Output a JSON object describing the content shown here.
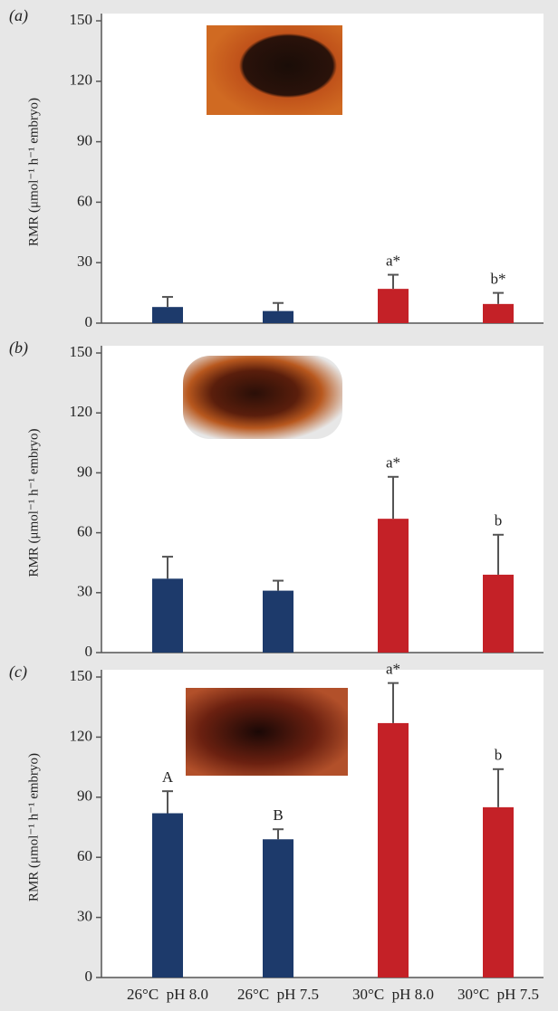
{
  "chart_data": [
    {
      "type": "bar",
      "panel_label": "(a)",
      "ylabel": "RMR (μmol⁻¹ h⁻¹ embryo)",
      "ylim": [
        0,
        150
      ],
      "yticks": [
        0,
        30,
        60,
        90,
        120,
        150
      ],
      "colors": [
        "#1d3a6b",
        "#1d3a6b",
        "#c42127",
        "#c42127"
      ],
      "values": [
        8,
        6,
        17,
        9.5
      ],
      "errors": [
        5,
        4,
        7,
        5.5
      ],
      "annotations": [
        null,
        null,
        "a*",
        "b*"
      ]
    },
    {
      "type": "bar",
      "panel_label": "(b)",
      "ylabel": "RMR (μmol⁻¹ h⁻¹ embryo)",
      "ylim": [
        0,
        150
      ],
      "yticks": [
        0,
        30,
        60,
        90,
        120,
        150
      ],
      "colors": [
        "#1d3a6b",
        "#1d3a6b",
        "#c42127",
        "#c42127"
      ],
      "values": [
        37,
        31,
        67,
        39
      ],
      "errors": [
        11,
        5,
        21,
        20
      ],
      "annotations": [
        null,
        null,
        "a*",
        "b"
      ]
    },
    {
      "type": "bar",
      "panel_label": "(c)",
      "ylabel": "RMR (μmol⁻¹ h⁻¹ embryo)",
      "ylim": [
        0,
        150
      ],
      "yticks": [
        0,
        30,
        60,
        90,
        120,
        150
      ],
      "colors": [
        "#1d3a6b",
        "#1d3a6b",
        "#c42127",
        "#c42127"
      ],
      "categories": [
        "26°C  pH 8.0",
        "26°C  pH 7.5",
        "30°C  pH 8.0",
        "30°C  pH 7.5"
      ],
      "values": [
        82,
        69,
        127,
        85
      ],
      "errors": [
        11,
        5,
        20,
        19
      ],
      "annotations": [
        "A",
        "B",
        "a*",
        "b"
      ]
    }
  ]
}
